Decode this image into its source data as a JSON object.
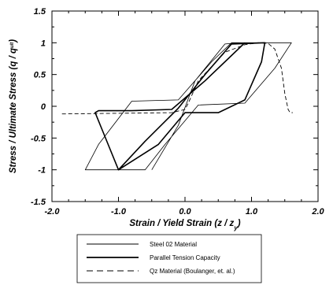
{
  "chart_data": {
    "type": "line",
    "xlabel": "Strain / Yield Strain (z / z",
    "xlabel_sub": "y",
    "xlabel_end": ")",
    "ylabel": "Stress / Ultimate Stress (q / q",
    "ylabel_sup": "ult",
    "ylabel_end": ")",
    "xlim": [
      -2.0,
      2.0
    ],
    "ylim": [
      -1.5,
      1.5
    ],
    "x_ticks": [
      -2.0,
      -1.0,
      0.0,
      1.0,
      2.0
    ],
    "x_tick_labels": [
      "-2.0",
      "-1.0",
      "0.0",
      "1.0",
      "2.0"
    ],
    "y_ticks": [
      -1.5,
      -1,
      -0.5,
      0,
      0.5,
      1,
      1.5
    ],
    "y_tick_labels": [
      "-1.5",
      "-1",
      "-0.5",
      "0",
      "0.5",
      "1",
      "1.5"
    ],
    "grid": false,
    "legend_position": "bottom",
    "series": [
      {
        "name": "Steel 02 Material",
        "style": "thin-solid",
        "color": "#000000",
        "x": [
          -0.5,
          -0.1,
          0.15,
          0.6,
          0.85,
          1.6,
          1.35,
          0.9,
          0.2,
          -0.3,
          -0.6,
          -1.5,
          -1.3,
          -0.8,
          -0.1,
          0.4,
          0.7,
          1.6
        ],
        "y": [
          -1.0,
          -0.3,
          0.4,
          0.98,
          1.0,
          1.0,
          0.6,
          0.05,
          0.02,
          -0.6,
          -1.0,
          -1.0,
          -0.6,
          0.08,
          0.1,
          0.7,
          1.0,
          1.0
        ]
      },
      {
        "name": "Parallel Tension Capacity",
        "style": "thick-solid",
        "color": "#000000",
        "x": [
          -1.0,
          -0.6,
          -0.1,
          0.3,
          0.7,
          1.2,
          1.15,
          0.9,
          0.5,
          0.0,
          -0.4,
          -1.0,
          -1.35,
          -1.3,
          -0.8,
          -0.2,
          0.3,
          0.7,
          0.9
        ],
        "y": [
          -1.0,
          -0.55,
          -0.03,
          0.5,
          0.98,
          1.0,
          0.7,
          0.1,
          -0.1,
          -0.1,
          -0.6,
          -1.0,
          -0.1,
          -0.07,
          -0.07,
          -0.05,
          0.4,
          0.8,
          1.0
        ]
      },
      {
        "name": "Qz Material (Boulanger, et. al.)",
        "style": "dashed",
        "color": "#000000",
        "x": [
          -1.85,
          -1.0,
          -0.2,
          0.0,
          0.05,
          0.2,
          0.6,
          0.9,
          1.1,
          1.25,
          1.35,
          1.45,
          1.5,
          1.55,
          1.58,
          1.62
        ],
        "y": [
          -0.12,
          -0.11,
          -0.1,
          -0.05,
          0.05,
          0.4,
          0.85,
          0.97,
          1.0,
          0.99,
          0.9,
          0.6,
          0.2,
          -0.05,
          -0.1,
          -0.1
        ]
      }
    ]
  }
}
